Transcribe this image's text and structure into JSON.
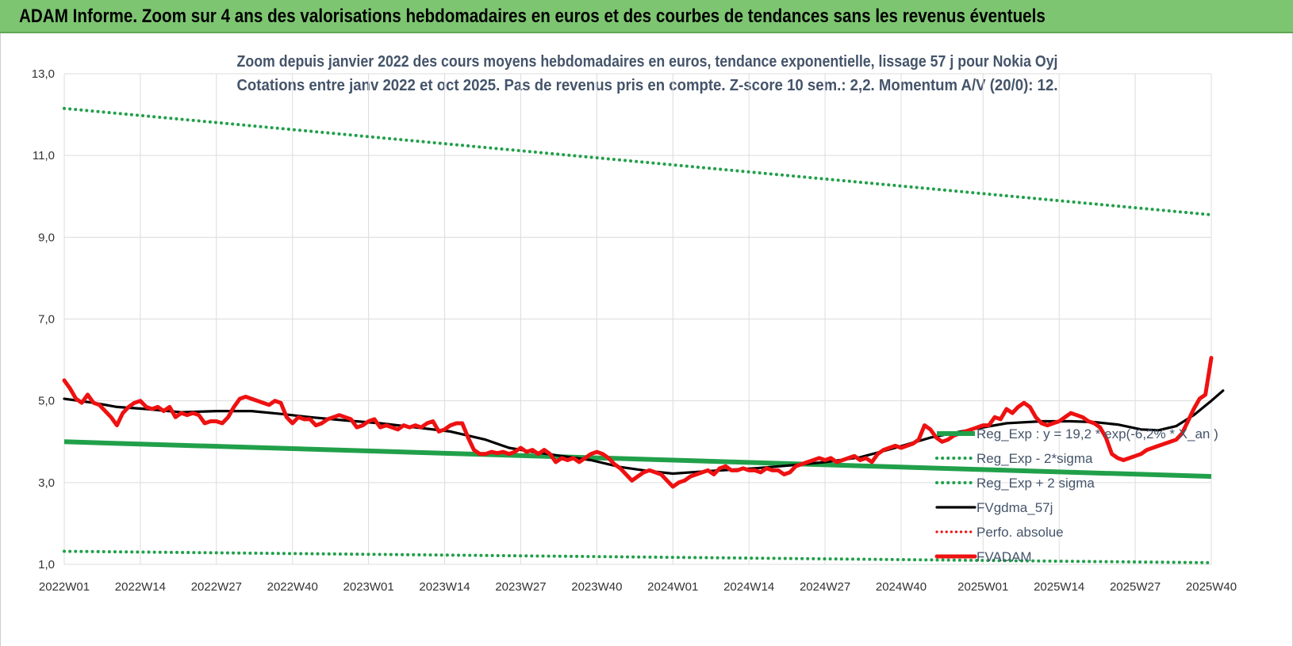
{
  "banner": {
    "title": "ADAM Informe. Zoom sur 4 ans des valorisations hebdomadaires en euros et des courbes de tendances sans les revenus éventuels"
  },
  "colors": {
    "banner_bg": "#7dc571",
    "trend_green": "#21a04a",
    "price_red": "#ee1111",
    "smooth_black": "#000000",
    "grid": "#dcdcdc"
  },
  "chart_data": {
    "type": "line",
    "title_line1": "Zoom depuis janvier 2022 des cours moyens hebdomadaires en euros, tendance exponentielle, lissage 57 j pour Nokia Oyj",
    "title_line2": "Cotations entre janv 2022 et oct 2025. Pas de revenus pris en compte. Z-score 10 sem.: 2,2. Momentum A/V (20/0): 12.",
    "xlabel": "",
    "ylabel": "",
    "ylim": [
      1.0,
      13.0
    ],
    "yticks": [
      "1,0",
      "3,0",
      "5,0",
      "7,0",
      "9,0",
      "11,0",
      "13,0"
    ],
    "ytick_values": [
      1,
      3,
      5,
      7,
      9,
      11,
      13
    ],
    "x_range_weeks": [
      0,
      196
    ],
    "xticks": [
      "2022W01",
      "2022W14",
      "2022W27",
      "2022W40",
      "2023W01",
      "2023W14",
      "2023W27",
      "2023W40",
      "2024W01",
      "2024W14",
      "2024W27",
      "2024W40",
      "2025W01",
      "2025W14",
      "2025W27",
      "2025W40"
    ],
    "xtick_weeks": [
      0,
      13,
      26,
      39,
      52,
      65,
      78,
      91,
      104,
      117,
      130,
      143,
      157,
      170,
      183,
      196
    ],
    "grid": true,
    "legend_position": "bottom-right",
    "series": [
      {
        "name": "Reg_Exp : y = 19,2 * exp(-6,2% * X_an )",
        "style": "solid-thick-green",
        "points": [
          [
            0,
            4.0
          ],
          [
            196,
            3.15
          ]
        ]
      },
      {
        "name": "Reg_Exp - 2*sigma",
        "style": "dotted-green",
        "points": [
          [
            0,
            1.32
          ],
          [
            196,
            1.04
          ]
        ]
      },
      {
        "name": "Reg_Exp + 2 sigma",
        "style": "dotted-green",
        "points": [
          [
            0,
            12.15
          ],
          [
            196,
            9.55
          ]
        ]
      },
      {
        "name": "FVgdma_57j",
        "style": "solid-black",
        "points": [
          [
            0,
            5.05
          ],
          [
            5,
            4.95
          ],
          [
            9,
            4.85
          ],
          [
            14,
            4.8
          ],
          [
            20,
            4.72
          ],
          [
            26,
            4.75
          ],
          [
            32,
            4.75
          ],
          [
            37,
            4.68
          ],
          [
            42,
            4.6
          ],
          [
            48,
            4.52
          ],
          [
            54,
            4.45
          ],
          [
            60,
            4.35
          ],
          [
            66,
            4.25
          ],
          [
            72,
            4.05
          ],
          [
            76,
            3.85
          ],
          [
            80,
            3.75
          ],
          [
            85,
            3.65
          ],
          [
            90,
            3.55
          ],
          [
            95,
            3.38
          ],
          [
            100,
            3.28
          ],
          [
            104,
            3.22
          ],
          [
            110,
            3.28
          ],
          [
            118,
            3.35
          ],
          [
            124,
            3.42
          ],
          [
            130,
            3.5
          ],
          [
            136,
            3.62
          ],
          [
            142,
            3.85
          ],
          [
            148,
            4.1
          ],
          [
            155,
            4.3
          ],
          [
            161,
            4.45
          ],
          [
            167,
            4.5
          ],
          [
            172,
            4.5
          ],
          [
            176,
            4.48
          ],
          [
            180,
            4.42
          ],
          [
            184,
            4.3
          ],
          [
            187,
            4.28
          ],
          [
            190,
            4.38
          ],
          [
            193,
            4.65
          ],
          [
            196,
            5.0
          ],
          [
            198,
            5.25
          ]
        ]
      },
      {
        "name": "Perfo. absolue",
        "style": "dotted-red",
        "points": []
      },
      {
        "name": "FVADAM",
        "style": "solid-thick-red",
        "points": [
          [
            0,
            5.5
          ],
          [
            1,
            5.3
          ],
          [
            2,
            5.05
          ],
          [
            3,
            4.95
          ],
          [
            4,
            5.15
          ],
          [
            5,
            4.95
          ],
          [
            6,
            4.9
          ],
          [
            7,
            4.75
          ],
          [
            8,
            4.6
          ],
          [
            9,
            4.4
          ],
          [
            10,
            4.7
          ],
          [
            11,
            4.85
          ],
          [
            12,
            4.95
          ],
          [
            13,
            5.0
          ],
          [
            14,
            4.85
          ],
          [
            15,
            4.8
          ],
          [
            16,
            4.85
          ],
          [
            17,
            4.75
          ],
          [
            18,
            4.85
          ],
          [
            19,
            4.6
          ],
          [
            20,
            4.7
          ],
          [
            21,
            4.65
          ],
          [
            22,
            4.7
          ],
          [
            23,
            4.65
          ],
          [
            24,
            4.45
          ],
          [
            25,
            4.5
          ],
          [
            26,
            4.5
          ],
          [
            27,
            4.45
          ],
          [
            28,
            4.6
          ],
          [
            29,
            4.85
          ],
          [
            30,
            5.05
          ],
          [
            31,
            5.1
          ],
          [
            32,
            5.05
          ],
          [
            33,
            5.0
          ],
          [
            34,
            4.95
          ],
          [
            35,
            4.9
          ],
          [
            36,
            5.0
          ],
          [
            37,
            4.95
          ],
          [
            38,
            4.6
          ],
          [
            39,
            4.45
          ],
          [
            40,
            4.6
          ],
          [
            41,
            4.55
          ],
          [
            42,
            4.55
          ],
          [
            43,
            4.4
          ],
          [
            44,
            4.45
          ],
          [
            45,
            4.55
          ],
          [
            46,
            4.6
          ],
          [
            47,
            4.65
          ],
          [
            48,
            4.6
          ],
          [
            49,
            4.55
          ],
          [
            50,
            4.35
          ],
          [
            51,
            4.4
          ],
          [
            52,
            4.5
          ],
          [
            53,
            4.55
          ],
          [
            54,
            4.35
          ],
          [
            55,
            4.4
          ],
          [
            56,
            4.35
          ],
          [
            57,
            4.3
          ],
          [
            58,
            4.4
          ],
          [
            59,
            4.35
          ],
          [
            60,
            4.4
          ],
          [
            61,
            4.35
          ],
          [
            62,
            4.45
          ],
          [
            63,
            4.5
          ],
          [
            64,
            4.25
          ],
          [
            65,
            4.3
          ],
          [
            66,
            4.4
          ],
          [
            67,
            4.45
          ],
          [
            68,
            4.45
          ],
          [
            69,
            4.1
          ],
          [
            70,
            3.8
          ],
          [
            71,
            3.7
          ],
          [
            72,
            3.7
          ],
          [
            73,
            3.75
          ],
          [
            74,
            3.72
          ],
          [
            75,
            3.75
          ],
          [
            76,
            3.7
          ],
          [
            77,
            3.75
          ],
          [
            78,
            3.85
          ],
          [
            79,
            3.75
          ],
          [
            80,
            3.8
          ],
          [
            81,
            3.7
          ],
          [
            82,
            3.8
          ],
          [
            83,
            3.7
          ],
          [
            84,
            3.5
          ],
          [
            85,
            3.6
          ],
          [
            86,
            3.55
          ],
          [
            87,
            3.6
          ],
          [
            88,
            3.5
          ],
          [
            89,
            3.6
          ],
          [
            90,
            3.7
          ],
          [
            91,
            3.75
          ],
          [
            92,
            3.7
          ],
          [
            93,
            3.6
          ],
          [
            94,
            3.45
          ],
          [
            95,
            3.35
          ],
          [
            96,
            3.2
          ],
          [
            97,
            3.05
          ],
          [
            98,
            3.15
          ],
          [
            99,
            3.25
          ],
          [
            100,
            3.3
          ],
          [
            101,
            3.25
          ],
          [
            102,
            3.2
          ],
          [
            103,
            3.05
          ],
          [
            104,
            2.9
          ],
          [
            105,
            3.0
          ],
          [
            106,
            3.05
          ],
          [
            107,
            3.15
          ],
          [
            108,
            3.2
          ],
          [
            109,
            3.25
          ],
          [
            110,
            3.3
          ],
          [
            111,
            3.2
          ],
          [
            112,
            3.35
          ],
          [
            113,
            3.4
          ],
          [
            114,
            3.3
          ],
          [
            115,
            3.3
          ],
          [
            116,
            3.35
          ],
          [
            117,
            3.3
          ],
          [
            118,
            3.3
          ],
          [
            119,
            3.25
          ],
          [
            120,
            3.35
          ],
          [
            121,
            3.3
          ],
          [
            122,
            3.3
          ],
          [
            123,
            3.2
          ],
          [
            124,
            3.25
          ],
          [
            125,
            3.4
          ],
          [
            126,
            3.45
          ],
          [
            127,
            3.5
          ],
          [
            128,
            3.55
          ],
          [
            129,
            3.6
          ],
          [
            130,
            3.55
          ],
          [
            131,
            3.6
          ],
          [
            132,
            3.5
          ],
          [
            133,
            3.55
          ],
          [
            134,
            3.6
          ],
          [
            135,
            3.65
          ],
          [
            136,
            3.55
          ],
          [
            137,
            3.6
          ],
          [
            138,
            3.5
          ],
          [
            139,
            3.7
          ],
          [
            140,
            3.8
          ],
          [
            141,
            3.85
          ],
          [
            142,
            3.9
          ],
          [
            143,
            3.85
          ],
          [
            144,
            3.9
          ],
          [
            145,
            3.95
          ],
          [
            146,
            4.05
          ],
          [
            147,
            4.4
          ],
          [
            148,
            4.3
          ],
          [
            149,
            4.1
          ],
          [
            150,
            4.0
          ],
          [
            151,
            4.05
          ],
          [
            152,
            4.15
          ],
          [
            153,
            4.2
          ],
          [
            154,
            4.25
          ],
          [
            155,
            4.3
          ],
          [
            156,
            4.35
          ],
          [
            157,
            4.4
          ],
          [
            158,
            4.4
          ],
          [
            159,
            4.6
          ],
          [
            160,
            4.55
          ],
          [
            161,
            4.8
          ],
          [
            162,
            4.7
          ],
          [
            163,
            4.85
          ],
          [
            164,
            4.95
          ],
          [
            165,
            4.85
          ],
          [
            166,
            4.6
          ],
          [
            167,
            4.45
          ],
          [
            168,
            4.4
          ],
          [
            169,
            4.45
          ],
          [
            170,
            4.5
          ],
          [
            171,
            4.6
          ],
          [
            172,
            4.7
          ],
          [
            173,
            4.65
          ],
          [
            174,
            4.6
          ],
          [
            175,
            4.5
          ],
          [
            176,
            4.45
          ],
          [
            177,
            4.35
          ],
          [
            178,
            4.1
          ],
          [
            179,
            3.7
          ],
          [
            180,
            3.6
          ],
          [
            181,
            3.55
          ],
          [
            182,
            3.6
          ],
          [
            183,
            3.65
          ],
          [
            184,
            3.7
          ],
          [
            185,
            3.8
          ],
          [
            186,
            3.85
          ],
          [
            187,
            3.9
          ],
          [
            188,
            3.95
          ],
          [
            189,
            4.0
          ],
          [
            190,
            4.05
          ],
          [
            191,
            4.2
          ],
          [
            192,
            4.5
          ],
          [
            193,
            4.8
          ],
          [
            194,
            5.05
          ],
          [
            195,
            5.15
          ],
          [
            196,
            6.05
          ]
        ]
      }
    ]
  }
}
